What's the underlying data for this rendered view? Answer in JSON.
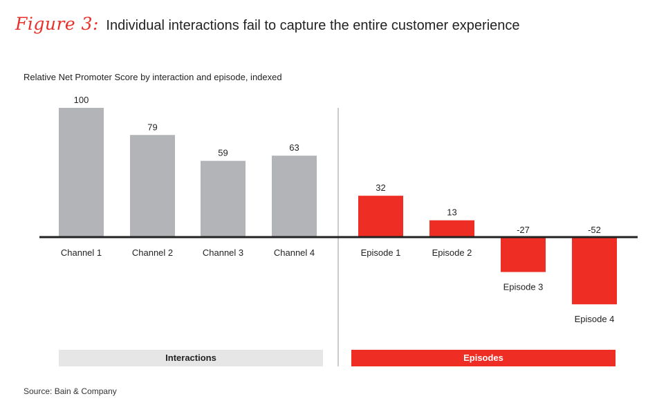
{
  "figure": {
    "label": "Figure 3:",
    "title": "Individual interactions fail to capture the entire customer experience"
  },
  "source": "Source: Bain & Company",
  "groups": {
    "left_label": "Interactions",
    "right_label": "Episodes"
  },
  "colors": {
    "interaction_bar": "#b3b4b7",
    "episode_bar": "#ee2d24",
    "accent": "#e8302a",
    "baseline": "#222222"
  },
  "chart_data": {
    "type": "bar",
    "title": "Relative Net Promoter Score by interaction and episode, indexed",
    "categories": [
      "Channel 1",
      "Channel 2",
      "Channel 3",
      "Channel 4",
      "Episode 1",
      "Episode 2",
      "Episode 3",
      "Episode 4"
    ],
    "series": [
      {
        "values": [
          100,
          79,
          59,
          63,
          32,
          13,
          -27,
          -52
        ]
      }
    ],
    "data_labels": [
      "100",
      "79",
      "59",
      "63",
      "32",
      "13",
      "-27",
      "-52"
    ],
    "groups": [
      {
        "label": "Interactions",
        "categories": [
          "Channel 1",
          "Channel 2",
          "Channel 3",
          "Channel 4"
        ]
      },
      {
        "label": "Episodes",
        "categories": [
          "Episode 1",
          "Episode 2",
          "Episode 3",
          "Episode 4"
        ]
      }
    ],
    "ylim": [
      -52,
      100
    ],
    "grid": false,
    "legend": "none"
  }
}
